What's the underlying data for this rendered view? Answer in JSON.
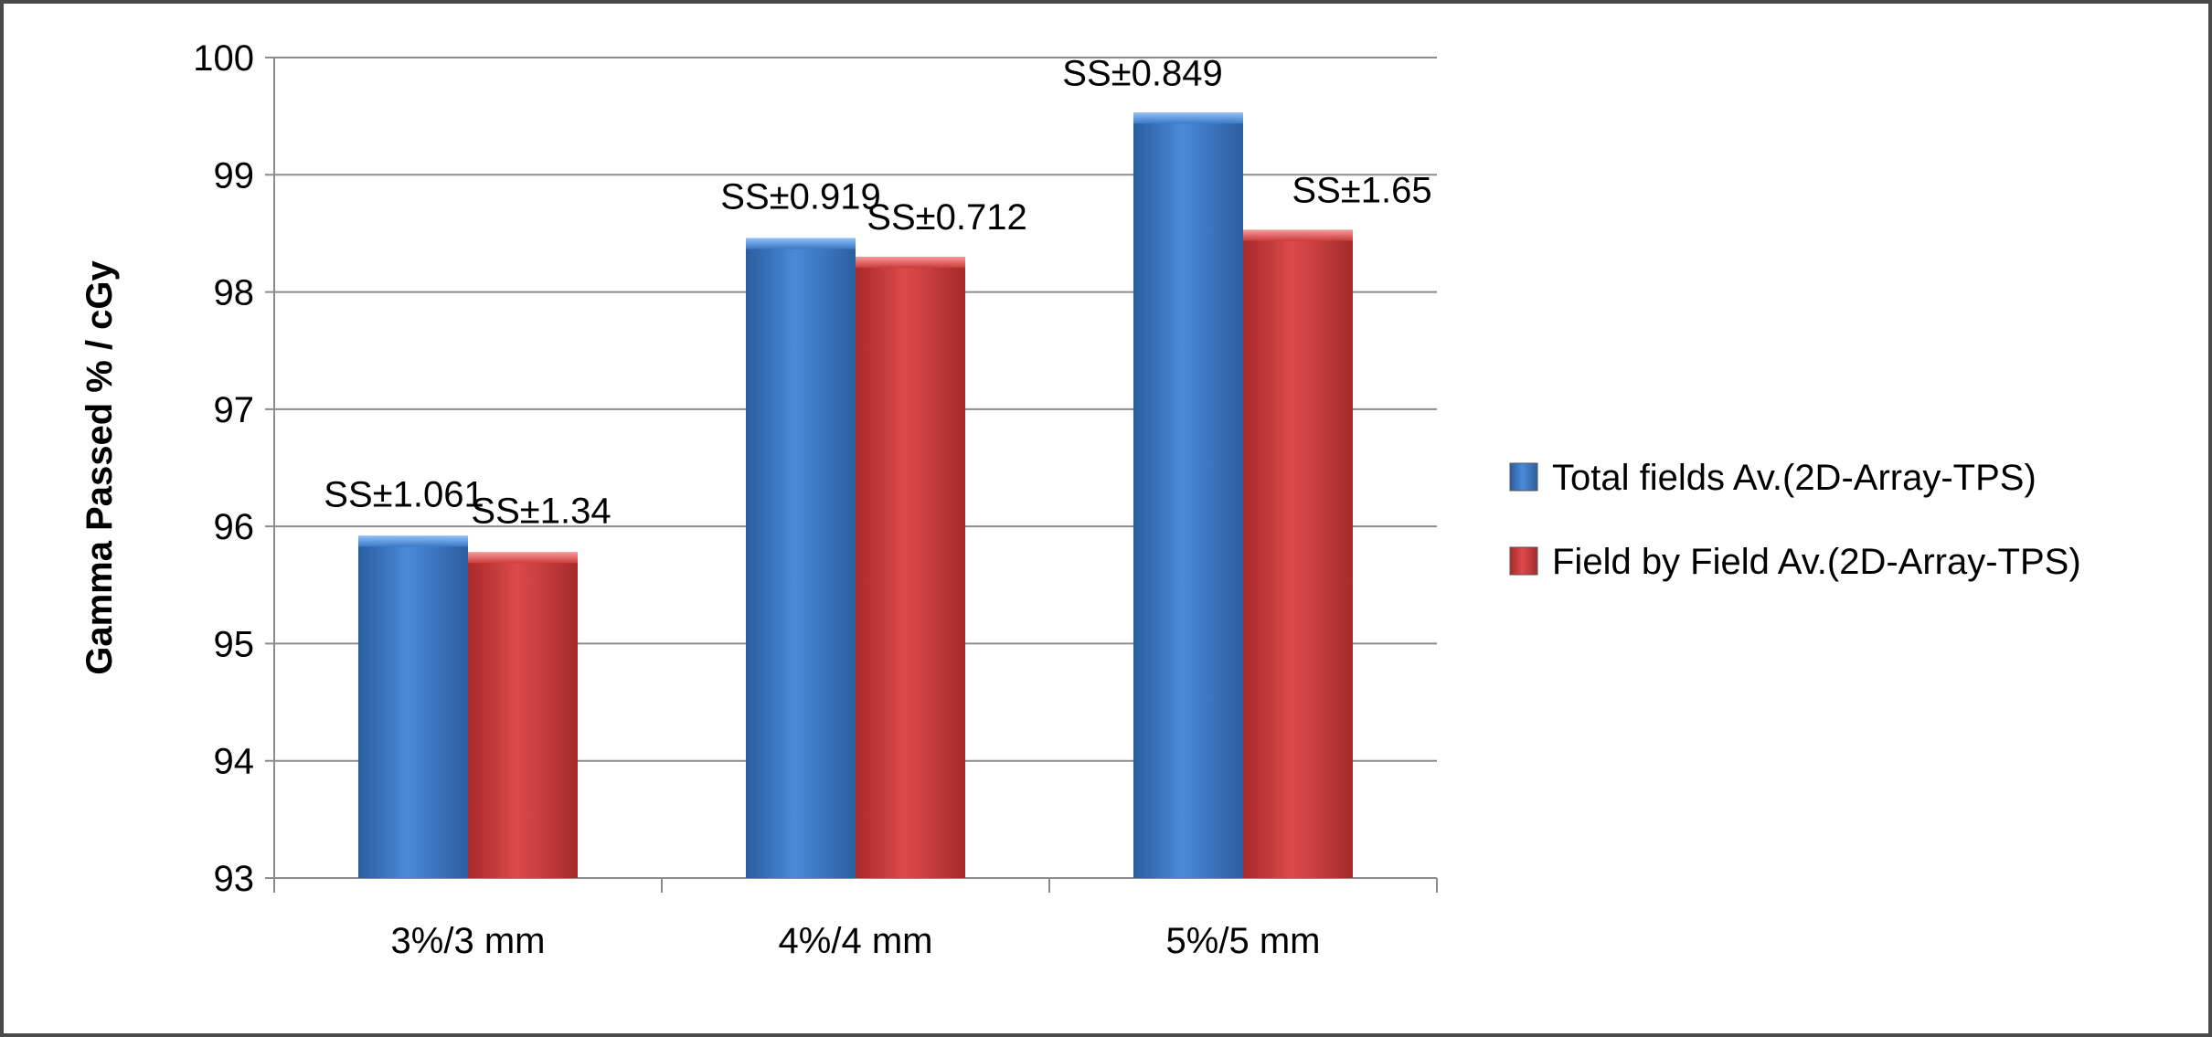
{
  "chart_data": {
    "type": "bar",
    "categories": [
      "3%/3 mm",
      "4%/4 mm",
      "5%/5 mm"
    ],
    "series": [
      {
        "name": "Total fields Av.(2D-Array-TPS)",
        "values": [
          95.92,
          98.46,
          99.53
        ],
        "color": "#3b78c6",
        "labels": [
          "SS±1.061",
          "SS±0.919",
          "SS±0.849"
        ]
      },
      {
        "name": "Field by Field Av.(2D-Array-TPS)",
        "values": [
          95.78,
          98.3,
          98.53
        ],
        "color": "#cc3b3b",
        "labels": [
          "SS±1.34",
          "SS±0.712",
          "SS±1.65"
        ]
      }
    ],
    "ylabel": "Gamma Passed % / cGy",
    "xlabel": "",
    "ylim": [
      93,
      100
    ],
    "yticks": [
      93,
      94,
      95,
      96,
      97,
      98,
      99,
      100
    ],
    "grid": true,
    "legend_position": "right"
  }
}
